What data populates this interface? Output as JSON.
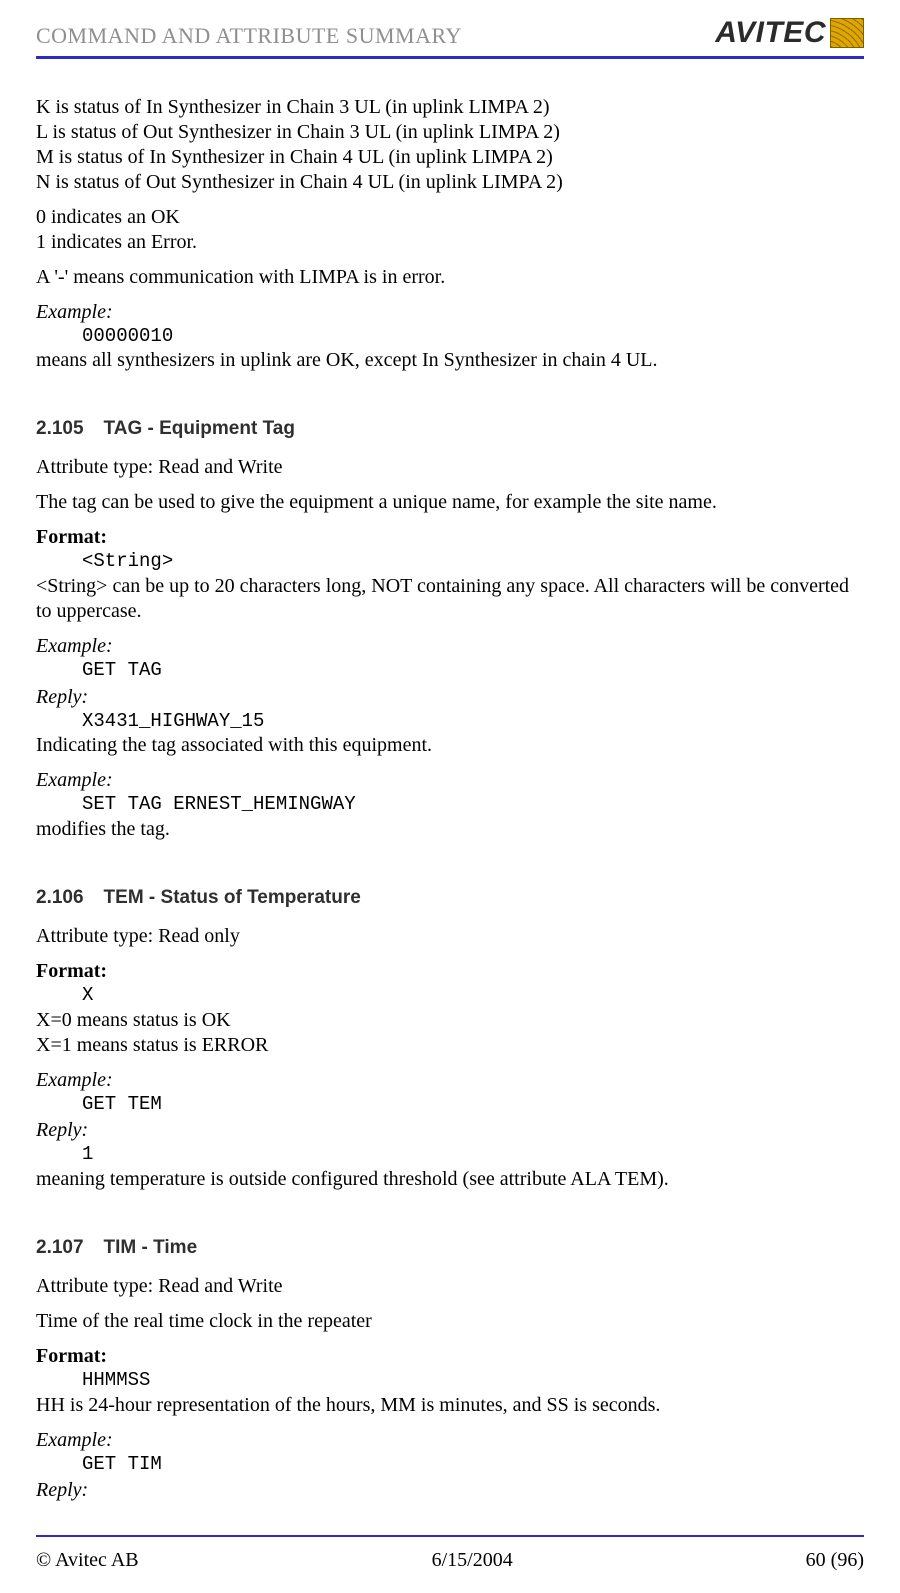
{
  "header": {
    "title": "COMMAND AND ATTRIBUTE SUMMARY",
    "logo_text": "AVITEC"
  },
  "intro": {
    "lines": [
      "K is status of In Synthesizer in Chain 3 UL (in uplink LIMPA 2)",
      "L is status of Out Synthesizer in Chain 3 UL (in uplink LIMPA 2)",
      "M is status of In Synthesizer in Chain 4 UL (in uplink LIMPA 2)",
      "N is status of Out Synthesizer in Chain 4 UL (in uplink LIMPA 2)"
    ],
    "ok": "0 indicates an OK",
    "err": "1 indicates an Error.",
    "dash": "A '-' means communication with LIMPA is in error.",
    "example_label": "Example:",
    "example_code": "00000010",
    "example_desc": "means all synthesizers in uplink are OK, except In Synthesizer in chain 4 UL."
  },
  "sec105": {
    "num": "2.105",
    "title": "TAG - Equipment Tag",
    "attr": "Attribute type: Read and Write",
    "desc": "The tag can be used to give the equipment a unique name, for example the site name.",
    "format_label": "Format:",
    "format_code": "<String>",
    "format_desc": "<String> can be up to 20 characters long, NOT containing any space. All characters will be converted to uppercase.",
    "ex1_label": "Example:",
    "ex1_code": "GET TAG",
    "reply1_label": "Reply:",
    "reply1_code": "X3431_HIGHWAY_15",
    "reply1_desc": "Indicating the tag associated with this equipment.",
    "ex2_label": "Example:",
    "ex2_code": "SET TAG ERNEST_HEMINGWAY",
    "ex2_desc": "modifies the tag."
  },
  "sec106": {
    "num": "2.106",
    "title": "TEM - Status of Temperature",
    "attr": "Attribute type: Read only",
    "format_label": "Format:",
    "format_code": "X",
    "x0": "X=0 means status is OK",
    "x1": "X=1 means status is ERROR",
    "ex_label": "Example:",
    "ex_code": "GET TEM",
    "reply_label": "Reply:",
    "reply_code": "1",
    "reply_desc": "meaning temperature is outside configured threshold (see attribute ALA TEM)."
  },
  "sec107": {
    "num": "2.107",
    "title": "TIM - Time",
    "attr": "Attribute type: Read and Write",
    "desc": "Time of the real time clock in the repeater",
    "format_label": "Format:",
    "format_code": "HHMMSS",
    "format_desc": "HH is 24-hour representation of the hours, MM is minutes, and SS is seconds.",
    "ex_label": "Example:",
    "ex_code": "GET TIM",
    "reply_label": "Reply:"
  },
  "footer": {
    "left": "© Avitec AB",
    "center": "6/15/2004",
    "right": "60 (96)"
  }
}
